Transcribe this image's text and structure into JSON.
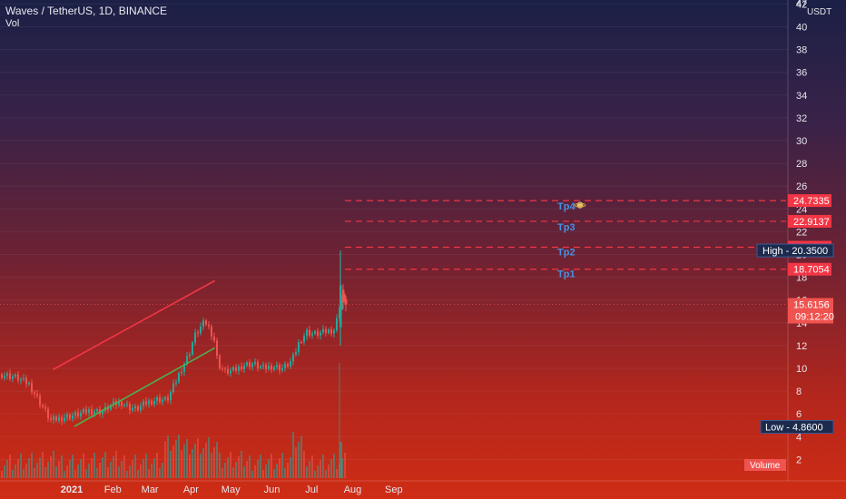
{
  "header": {
    "symbol_line": "Waves / TetherUS, 1D, BINANCE",
    "volume_indicator": "Vol",
    "currency": "USDT"
  },
  "colors": {
    "red": "#f23645",
    "green": "#4caf50",
    "tp_blue": "#4a90e2",
    "axis_text": "#e6e6ee"
  },
  "chart_data": {
    "type": "candlestick",
    "symbol": "Waves / TetherUS",
    "interval": "1D",
    "exchange": "BINANCE",
    "y_ticks": [
      2,
      4,
      6,
      8,
      10,
      12,
      14,
      16,
      18,
      20,
      22,
      24,
      26,
      28,
      30,
      32,
      34,
      36,
      38,
      40,
      42
    ],
    "y_top_label": "47",
    "x_ticks": [
      {
        "label": "2021",
        "date": "2021-01-01"
      },
      {
        "label": "Feb",
        "date": "2021-02-01"
      },
      {
        "label": "Mar",
        "date": "2021-03-01"
      },
      {
        "label": "Apr",
        "date": "2021-04-01"
      },
      {
        "label": "May",
        "date": "2021-05-01"
      },
      {
        "label": "Jun",
        "date": "2021-06-01"
      },
      {
        "label": "Jul",
        "date": "2021-07-01"
      },
      {
        "label": "Aug",
        "date": "2021-08-01"
      },
      {
        "label": "Sep",
        "date": "2021-09-01"
      }
    ],
    "current_price": "15.6156",
    "countdown": "09:12:20",
    "high_label": {
      "label": "High",
      "value": "20.3500"
    },
    "low_label": {
      "label": "Low",
      "value": "4.8600"
    },
    "volume_label": "Volume",
    "targets": [
      {
        "name": "Tp1",
        "price": "18.7054",
        "value": 18.7054
      },
      {
        "name": "Tp2",
        "price": "20.6389",
        "value": 20.6389
      },
      {
        "name": "Tp3",
        "price": "22.9137",
        "value": 22.9137
      },
      {
        "name": "Tp4",
        "price": "24.7335",
        "value": 24.7335
      }
    ],
    "trendlines": [
      {
        "name": "upper-channel",
        "color": "#f23645",
        "from": {
          "date": "2020-12-18",
          "value": 9.9
        },
        "to": {
          "date": "2021-04-19",
          "value": 17.7
        }
      },
      {
        "name": "lower-channel",
        "color": "#4caf50",
        "from": {
          "date": "2021-01-03",
          "value": 4.9
        },
        "to": {
          "date": "2021-04-19",
          "value": 11.8
        }
      }
    ]
  }
}
